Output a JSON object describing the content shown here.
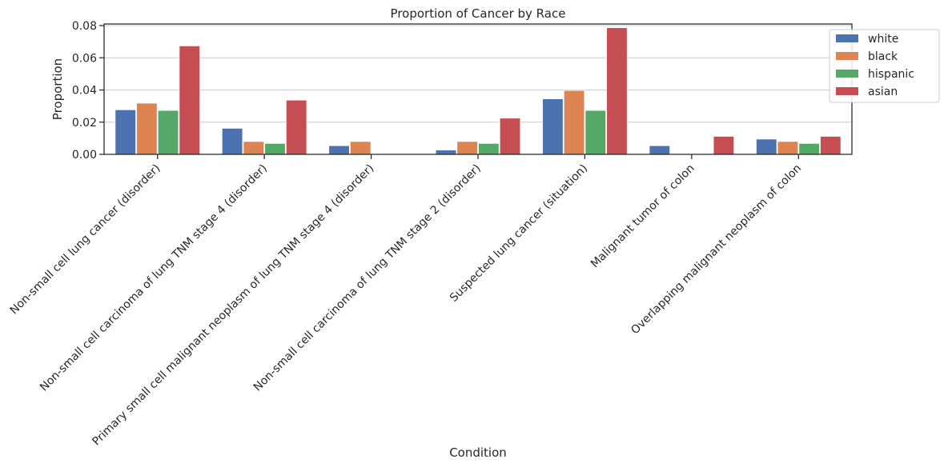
{
  "chart_data": {
    "type": "bar",
    "title": "Proportion of Cancer by Race",
    "xlabel": "Condition",
    "ylabel": "Proportion",
    "ylim": [
      0,
      0.081
    ],
    "yticks": [
      "0.00",
      "0.02",
      "0.04",
      "0.06",
      "0.08"
    ],
    "grid": "horizontal",
    "legend_position": "upper-right-outside",
    "categories": [
      "Non-small cell lung cancer (disorder)",
      "Non-small cell carcinoma of lung  TNM stage 4 (disorder)",
      "Primary small cell malignant neoplasm of lung  TNM stage 4 (disorder)",
      "Non-small cell carcinoma of lung  TNM stage 2 (disorder)",
      "Suspected lung cancer (situation)",
      "Malignant tumor of colon",
      "Overlapping malignant neoplasm of colon"
    ],
    "series": [
      {
        "name": "white",
        "color": "#4c72b0",
        "values": [
          0.0277,
          0.0162,
          0.0054,
          0.0027,
          0.0345,
          0.0054,
          0.0095
        ]
      },
      {
        "name": "black",
        "color": "#dd8452",
        "values": [
          0.0318,
          0.008,
          0.008,
          0.008,
          0.0397,
          0.0,
          0.008
        ]
      },
      {
        "name": "hispanic",
        "color": "#55a868",
        "values": [
          0.0273,
          0.0068,
          0.0,
          0.0068,
          0.0273,
          0.0,
          0.0068
        ]
      },
      {
        "name": "asian",
        "color": "#c44e52",
        "values": [
          0.0674,
          0.0337,
          0.0,
          0.0225,
          0.0787,
          0.0112,
          0.0112
        ]
      }
    ]
  }
}
